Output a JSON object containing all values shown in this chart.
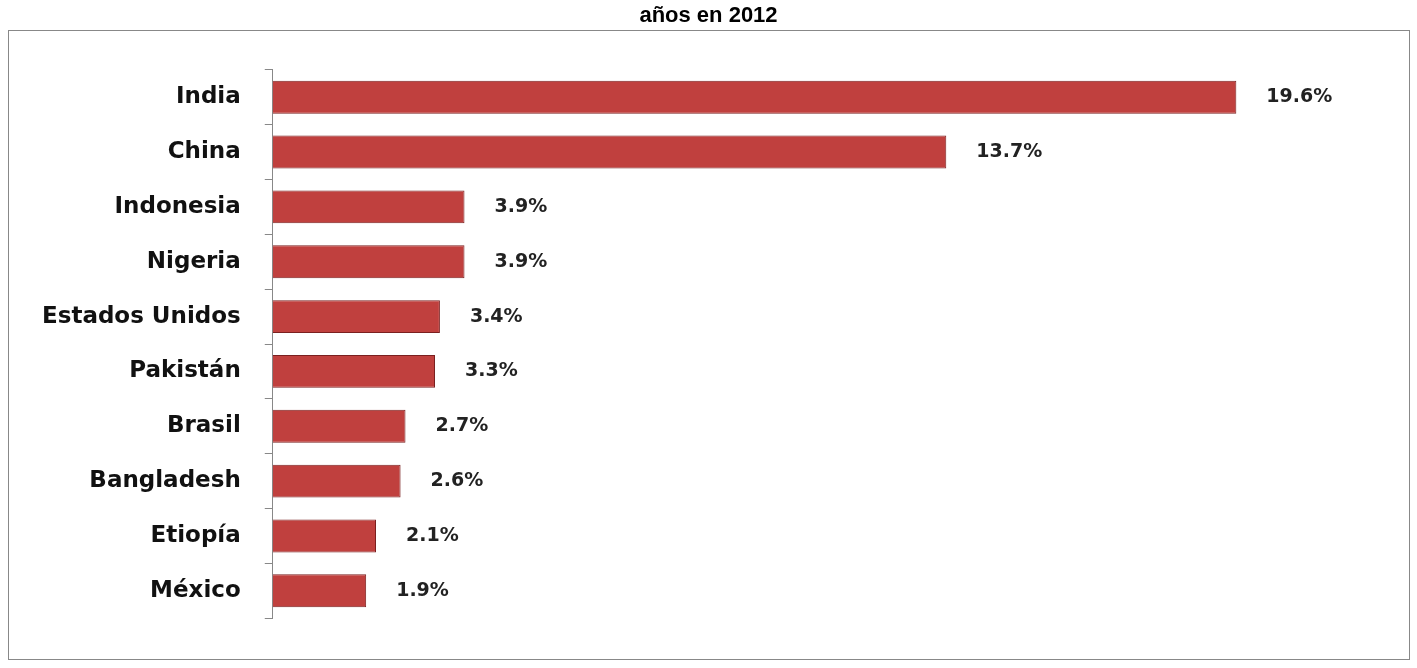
{
  "chart_data": {
    "type": "bar",
    "title": "años en 2012",
    "orientation": "horizontal",
    "categories": [
      "India",
      "China",
      "Indonesia",
      "Nigeria",
      "Estados Unidos",
      "Pakistán",
      "Brasil",
      "Bangladesh",
      "Etiopía",
      "México"
    ],
    "values": [
      19.6,
      13.7,
      3.9,
      3.9,
      3.4,
      3.3,
      2.7,
      2.6,
      2.1,
      1.9
    ],
    "value_labels": [
      "19.6%",
      "13.7%",
      "3.9%",
      "3.9%",
      "3.4%",
      "3.3%",
      "2.7%",
      "2.6%",
      "2.1%",
      "1.9%"
    ],
    "color": "#c0403e",
    "legend": false,
    "grid": false
  }
}
